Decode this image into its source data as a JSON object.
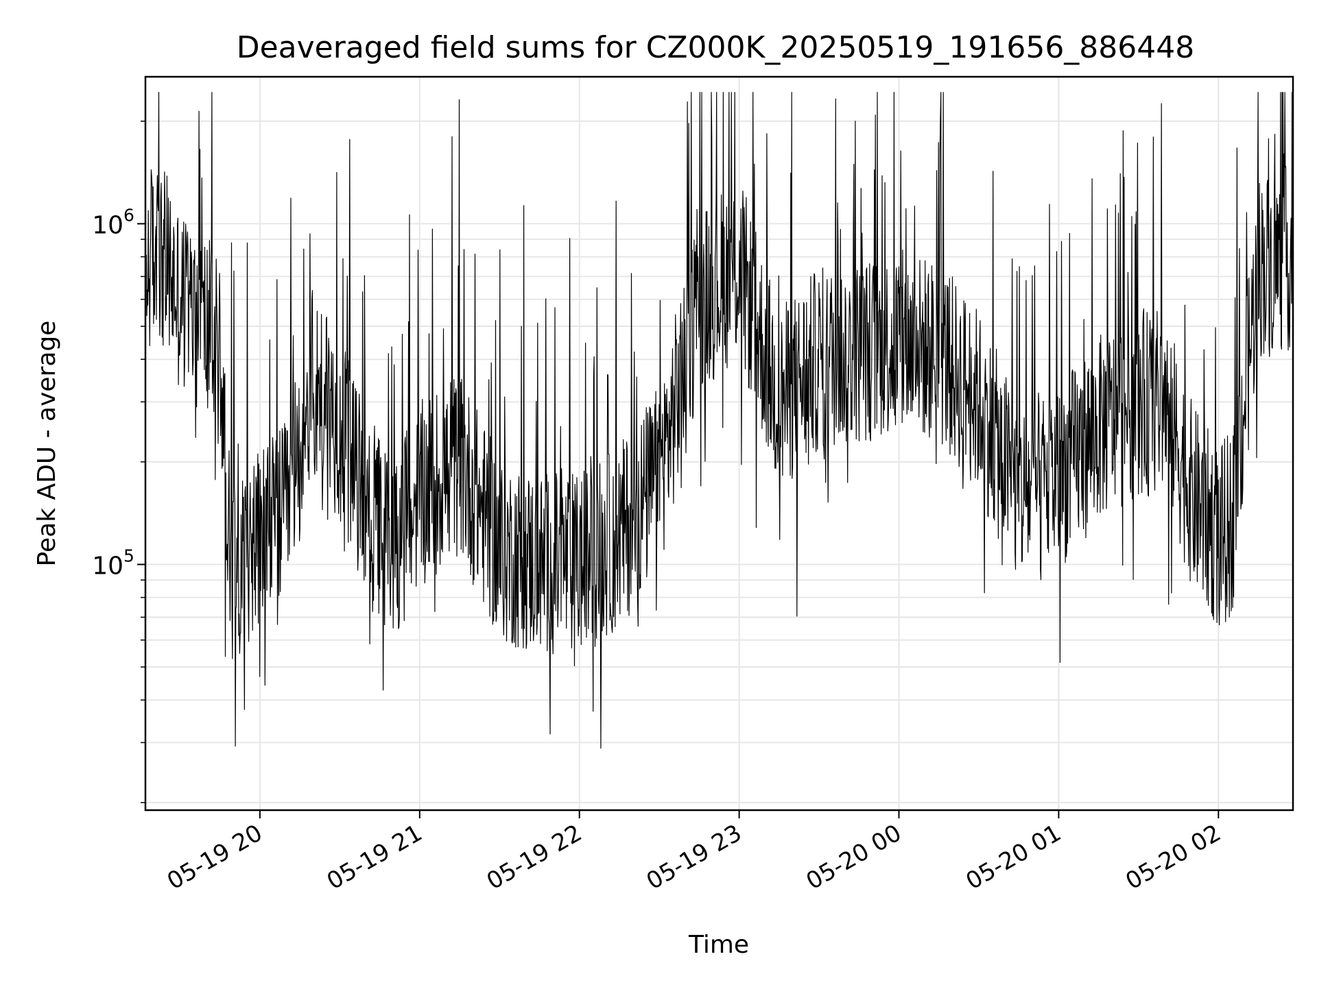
{
  "chart_data": {
    "type": "line",
    "title": "Deaveraged field sums for CZ000K_20250519_191656_886448",
    "xlabel": "Time",
    "ylabel": "Peak ADU - average",
    "yscale": "log",
    "ylim": [
      19000,
      2700000
    ],
    "xlim": [
      "2025-05-19 19:17",
      "2025-05-20 02:28"
    ],
    "grid": true,
    "x_ticks": [
      {
        "label": "05-19 20",
        "value": "2025-05-19 20:00"
      },
      {
        "label": "05-19 21",
        "value": "2025-05-19 21:00"
      },
      {
        "label": "05-19 22",
        "value": "2025-05-19 22:00"
      },
      {
        "label": "05-19 23",
        "value": "2025-05-19 23:00"
      },
      {
        "label": "05-20 00",
        "value": "2025-05-20 00:00"
      },
      {
        "label": "05-20 01",
        "value": "2025-05-20 01:00"
      },
      {
        "label": "05-20 02",
        "value": "2025-05-20 02:00"
      }
    ],
    "y_ticks": [
      {
        "base": "10",
        "exp": "5",
        "value": 100000
      },
      {
        "base": "10",
        "exp": "6",
        "value": 1000000
      }
    ],
    "series": [
      {
        "color": "#000000",
        "x": [
          "2025-05-19 19:17",
          "2025-05-19 19:20",
          "2025-05-19 19:25",
          "2025-05-19 19:30",
          "2025-05-19 19:35",
          "2025-05-19 19:40",
          "2025-05-19 19:45",
          "2025-05-19 19:50",
          "2025-05-19 19:55",
          "2025-05-19 20:00",
          "2025-05-19 20:10",
          "2025-05-19 20:20",
          "2025-05-19 20:30",
          "2025-05-19 20:40",
          "2025-05-19 20:50",
          "2025-05-19 21:00",
          "2025-05-19 21:15",
          "2025-05-19 21:30",
          "2025-05-19 21:45",
          "2025-05-19 22:00",
          "2025-05-19 22:15",
          "2025-05-19 22:30",
          "2025-05-19 22:45",
          "2025-05-19 23:00",
          "2025-05-19 23:15",
          "2025-05-19 23:30",
          "2025-05-19 23:45",
          "2025-05-20 00:00",
          "2025-05-20 00:15",
          "2025-05-20 00:30",
          "2025-05-20 00:45",
          "2025-05-20 01:00",
          "2025-05-20 01:15",
          "2025-05-20 01:30",
          "2025-05-20 01:40",
          "2025-05-20 01:50",
          "2025-05-20 02:00",
          "2025-05-20 02:05",
          "2025-05-20 02:15",
          "2025-05-20 02:28"
        ],
        "y": [
          700000,
          850000,
          750000,
          600000,
          550000,
          500000,
          400000,
          90000,
          110000,
          120000,
          140000,
          350000,
          250000,
          150000,
          110000,
          160000,
          200000,
          110000,
          100000,
          100000,
          120000,
          180000,
          600000,
          750000,
          300000,
          400000,
          420000,
          450000,
          420000,
          300000,
          160000,
          180000,
          250000,
          300000,
          300000,
          160000,
          120000,
          130000,
          750000,
          800000
        ]
      }
    ]
  }
}
